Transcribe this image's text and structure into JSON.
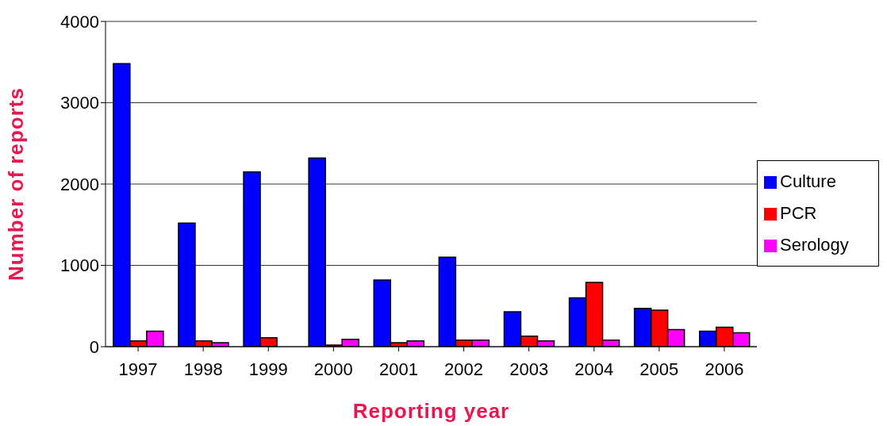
{
  "chart_data": {
    "type": "bar",
    "xlabel": "Reporting year",
    "ylabel": "Number of reports",
    "categories": [
      "1997",
      "1998",
      "1999",
      "2000",
      "2001",
      "2002",
      "2003",
      "2004",
      "2005",
      "2006"
    ],
    "series": [
      {
        "name": "Culture",
        "color": "#0000ff",
        "values": [
          3480,
          1520,
          2150,
          2320,
          820,
          1100,
          430,
          600,
          470,
          190
        ]
      },
      {
        "name": "PCR",
        "color": "#ff0000",
        "values": [
          70,
          70,
          110,
          20,
          50,
          80,
          130,
          790,
          450,
          240
        ]
      },
      {
        "name": "Serology",
        "color": "#ff00ff",
        "values": [
          190,
          50,
          0,
          90,
          70,
          80,
          70,
          80,
          210,
          170
        ]
      }
    ],
    "ylim": [
      0,
      4000
    ],
    "yticks": [
      0,
      1000,
      2000,
      3000,
      4000
    ],
    "grid": "y",
    "legend": "right"
  }
}
